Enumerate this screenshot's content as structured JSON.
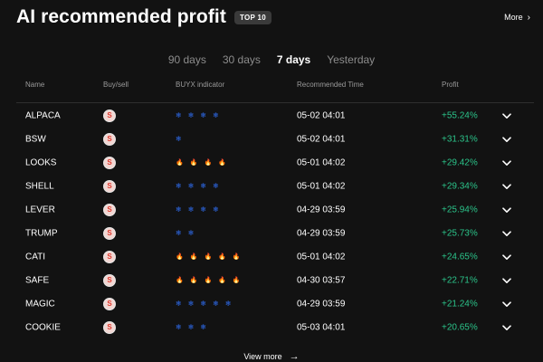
{
  "header": {
    "title": "AI recommended profit",
    "badge": "TOP 10",
    "more_label": "More",
    "more_icon": "chevron-right-icon"
  },
  "tabs": [
    {
      "label": "90 days",
      "active": false
    },
    {
      "label": "30 days",
      "active": false
    },
    {
      "label": "7 days",
      "active": true
    },
    {
      "label": "Yesterday",
      "active": false
    }
  ],
  "columns": {
    "name": "Name",
    "buy_sell": "Buy/sell",
    "indicator": "BUYX indicator",
    "time": "Recommended Time",
    "profit": "Profit"
  },
  "rows": [
    {
      "name": "ALPACA",
      "side": "S",
      "indicator": {
        "type": "snowflake",
        "count": 4
      },
      "time": "05-02 04:01",
      "profit": "+55.24%"
    },
    {
      "name": "BSW",
      "side": "S",
      "indicator": {
        "type": "snowflake",
        "count": 1
      },
      "time": "05-02 04:01",
      "profit": "+31.31%"
    },
    {
      "name": "LOOKS",
      "side": "S",
      "indicator": {
        "type": "fire",
        "count": 4
      },
      "time": "05-01 04:02",
      "profit": "+29.42%"
    },
    {
      "name": "SHELL",
      "side": "S",
      "indicator": {
        "type": "snowflake",
        "count": 4
      },
      "time": "05-01 04:02",
      "profit": "+29.34%"
    },
    {
      "name": "LEVER",
      "side": "S",
      "indicator": {
        "type": "snowflake",
        "count": 4
      },
      "time": "04-29 03:59",
      "profit": "+25.94%"
    },
    {
      "name": "TRUMP",
      "side": "S",
      "indicator": {
        "type": "snowflake",
        "count": 2
      },
      "time": "04-29 03:59",
      "profit": "+25.73%"
    },
    {
      "name": "CATI",
      "side": "S",
      "indicator": {
        "type": "fire",
        "count": 5
      },
      "time": "05-01 04:02",
      "profit": "+24.65%"
    },
    {
      "name": "SAFE",
      "side": "S",
      "indicator": {
        "type": "fire",
        "count": 5
      },
      "time": "04-30 03:57",
      "profit": "+22.71%"
    },
    {
      "name": "MAGIC",
      "side": "S",
      "indicator": {
        "type": "snowflake",
        "count": 5
      },
      "time": "04-29 03:59",
      "profit": "+21.24%"
    },
    {
      "name": "COOKIE",
      "side": "S",
      "indicator": {
        "type": "snowflake",
        "count": 3
      },
      "time": "05-03 04:01",
      "profit": "+20.65%"
    }
  ],
  "footer": {
    "view_more_label": "View more",
    "view_more_icon": "arrow-right-icon"
  },
  "colors": {
    "background": "#121212",
    "profit_green": "#2bc48a",
    "sell_red": "#e0392e",
    "snow_blue": "#2f6df1",
    "fire_red": "#f0313d"
  }
}
